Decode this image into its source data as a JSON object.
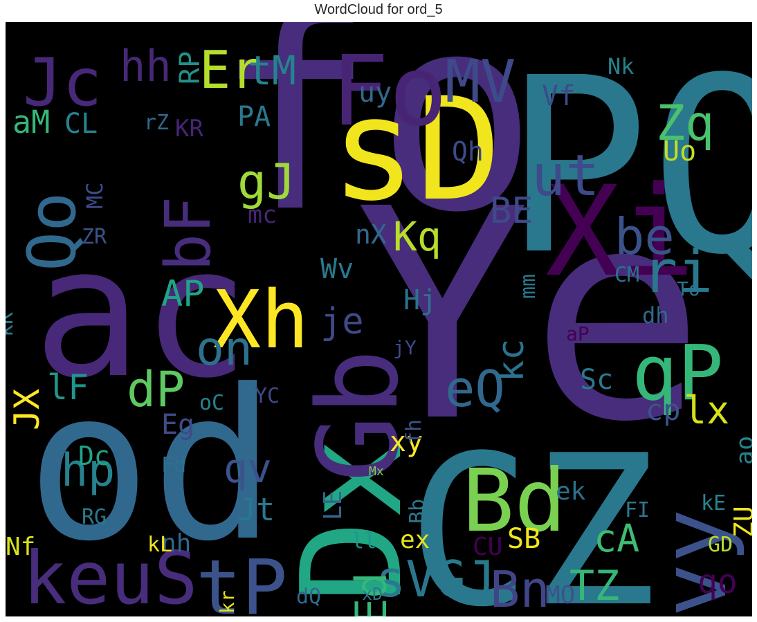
{
  "chart_data": {
    "type": "wordcloud",
    "title": "WordCloud for ord_5",
    "background_color": "#000000",
    "colormap": "viridis",
    "words": [
      {
        "text": "fo",
        "weight": 1.0,
        "color": "#472d7b"
      },
      {
        "text": "od",
        "weight": 0.98,
        "color": "#31688e"
      },
      {
        "text": "Ye",
        "weight": 0.96,
        "color": "#472d7b"
      },
      {
        "text": "PQ",
        "weight": 0.94,
        "color": "#2a788e"
      },
      {
        "text": "CZ",
        "weight": 0.92,
        "color": "#2a788e"
      },
      {
        "text": "ac",
        "weight": 0.9,
        "color": "#482878"
      },
      {
        "text": "sD",
        "weight": 0.88,
        "color": "#f1e51d"
      },
      {
        "text": "Dx",
        "weight": 0.82,
        "color": "#22a785"
      },
      {
        "text": "Xi",
        "weight": 0.76,
        "color": "#440154"
      },
      {
        "text": "Gb",
        "weight": 0.74,
        "color": "#472d7b"
      },
      {
        "text": "Fo",
        "weight": 0.72,
        "color": "#482475"
      },
      {
        "text": "Bd",
        "weight": 0.7,
        "color": "#7ad151"
      },
      {
        "text": "Xh",
        "weight": 0.68,
        "color": "#fde725"
      },
      {
        "text": "vy",
        "weight": 0.67,
        "color": "#3b528b"
      },
      {
        "text": "qP",
        "weight": 0.66,
        "color": "#35b779"
      },
      {
        "text": "keuS",
        "weight": 0.65,
        "color": "#472d7b"
      },
      {
        "text": "tP",
        "weight": 0.64,
        "color": "#3b528b"
      },
      {
        "text": "Jc",
        "weight": 0.63,
        "color": "#482878"
      },
      {
        "text": "bF",
        "weight": 0.62,
        "color": "#472d7b"
      },
      {
        "text": "Qo",
        "weight": 0.61,
        "color": "#31688e"
      },
      {
        "text": "Er",
        "weight": 0.6,
        "color": "#b5de2b"
      },
      {
        "text": "MV",
        "weight": 0.59,
        "color": "#3e4a89"
      },
      {
        "text": "ri",
        "weight": 0.58,
        "color": "#2a788e"
      },
      {
        "text": "be",
        "weight": 0.56,
        "color": "#3b528b"
      },
      {
        "text": "ut",
        "weight": 0.56,
        "color": "#3e4a89"
      },
      {
        "text": "eQ",
        "weight": 0.55,
        "color": "#31688e"
      },
      {
        "text": "gJ",
        "weight": 0.54,
        "color": "#a0da39"
      },
      {
        "text": "Zq",
        "weight": 0.54,
        "color": "#4ac16d"
      },
      {
        "text": "on",
        "weight": 0.53,
        "color": "#2c728e"
      },
      {
        "text": "dP",
        "weight": 0.53,
        "color": "#5ec962"
      },
      {
        "text": "sVGJ",
        "weight": 0.52,
        "color": "#2a788e"
      },
      {
        "text": "Bn",
        "weight": 0.52,
        "color": "#414487"
      },
      {
        "text": "hh",
        "weight": 0.51,
        "color": "#482878"
      },
      {
        "text": "tM",
        "weight": 0.51,
        "color": "#26828e"
      },
      {
        "text": "Ed",
        "weight": 0.5,
        "color": "#35b779"
      },
      {
        "text": "hp",
        "weight": 0.5,
        "color": "#26828e"
      },
      {
        "text": "Kq",
        "weight": 0.49,
        "color": "#b8de29"
      },
      {
        "text": "BE",
        "weight": 0.49,
        "color": "#3e4a89"
      },
      {
        "text": "qv",
        "weight": 0.48,
        "color": "#3b528b"
      },
      {
        "text": "cA",
        "weight": 0.48,
        "color": "#3fbc73"
      },
      {
        "text": "lx",
        "weight": 0.47,
        "color": "#d8e219"
      },
      {
        "text": "TZ",
        "weight": 0.47,
        "color": "#35b779"
      },
      {
        "text": "qo",
        "weight": 0.46,
        "color": "#440154"
      },
      {
        "text": "je",
        "weight": 0.46,
        "color": "#3e4a89"
      },
      {
        "text": "AP",
        "weight": 0.45,
        "color": "#20a386"
      },
      {
        "text": "kc",
        "weight": 0.45,
        "color": "#2c728e"
      },
      {
        "text": "aM",
        "weight": 0.44,
        "color": "#35b779"
      },
      {
        "text": "uy",
        "weight": 0.44,
        "color": "#31688e"
      },
      {
        "text": "Vf",
        "weight": 0.43,
        "color": "#3e4a89"
      },
      {
        "text": "Uo",
        "weight": 0.43,
        "color": "#c2df23"
      },
      {
        "text": "Jt",
        "weight": 0.42,
        "color": "#2a788e"
      },
      {
        "text": "JX",
        "weight": 0.42,
        "color": "#fde725"
      },
      {
        "text": "lF",
        "weight": 0.41,
        "color": "#1f968b"
      },
      {
        "text": "xy",
        "weight": 0.4,
        "color": "#fde725"
      },
      {
        "text": "Sc",
        "weight": 0.4,
        "color": "#2a788e"
      },
      {
        "text": "cp",
        "weight": 0.39,
        "color": "#3b528b"
      },
      {
        "text": "Hj",
        "weight": 0.39,
        "color": "#2c728e"
      },
      {
        "text": "Wv",
        "weight": 0.39,
        "color": "#2a788e"
      },
      {
        "text": "CL",
        "weight": 0.38,
        "color": "#26828e"
      },
      {
        "text": "Dc",
        "weight": 0.37,
        "color": "#20a386"
      },
      {
        "text": "Eg",
        "weight": 0.37,
        "color": "#3e4a89"
      },
      {
        "text": "PA",
        "weight": 0.36,
        "color": "#2a788e"
      },
      {
        "text": "Nk",
        "weight": 0.36,
        "color": "#26828e"
      },
      {
        "text": "CM",
        "weight": 0.35,
        "color": "#2c728e"
      },
      {
        "text": "nX",
        "weight": 0.35,
        "color": "#31688e"
      },
      {
        "text": "ek",
        "weight": 0.35,
        "color": "#2c728e"
      },
      {
        "text": "ex",
        "weight": 0.34,
        "color": "#e5e419"
      },
      {
        "text": "MO",
        "weight": 0.34,
        "color": "#3b528b"
      },
      {
        "text": "SB",
        "weight": 0.34,
        "color": "#f1e51d"
      },
      {
        "text": "CU",
        "weight": 0.34,
        "color": "#440154"
      },
      {
        "text": "ZU",
        "weight": 0.33,
        "color": "#f1e51d"
      },
      {
        "text": "ao",
        "weight": 0.33,
        "color": "#26828e"
      },
      {
        "text": "Qh",
        "weight": 0.33,
        "color": "#3e4a89"
      },
      {
        "text": "mm",
        "weight": 0.33,
        "color": "#2a788e"
      },
      {
        "text": "LE",
        "weight": 0.33,
        "color": "#31688e"
      },
      {
        "text": "nh",
        "weight": 0.33,
        "color": "#31688e"
      },
      {
        "text": "Fd",
        "weight": 0.33,
        "color": "#2c728e"
      },
      {
        "text": "mc",
        "weight": 0.33,
        "color": "#482475"
      },
      {
        "text": "dQ",
        "weight": 0.32,
        "color": "#31688e"
      },
      {
        "text": "Nf",
        "weight": 0.32,
        "color": "#d8e219"
      },
      {
        "text": "RG",
        "weight": 0.32,
        "color": "#2a788e"
      },
      {
        "text": "MC",
        "weight": 0.32,
        "color": "#3e4a89"
      },
      {
        "text": "FI",
        "weight": 0.32,
        "color": "#2a788e"
      },
      {
        "text": "kE",
        "weight": 0.32,
        "color": "#26828e"
      },
      {
        "text": "RP",
        "weight": 0.31,
        "color": "#21918c"
      },
      {
        "text": "ZR",
        "weight": 0.31,
        "color": "#3b528b"
      },
      {
        "text": "KR",
        "weight": 0.31,
        "color": "#482475"
      },
      {
        "text": "rZ",
        "weight": 0.31,
        "color": "#31688e"
      },
      {
        "text": "GD",
        "weight": 0.3,
        "color": "#b8de29"
      },
      {
        "text": "kL",
        "weight": 0.3,
        "color": "#f1e51d"
      },
      {
        "text": "oC",
        "weight": 0.3,
        "color": "#26828e"
      },
      {
        "text": "YC",
        "weight": 0.3,
        "color": "#3e4a89"
      },
      {
        "text": "kK",
        "weight": 0.3,
        "color": "#2a788e"
      },
      {
        "text": "fh",
        "weight": 0.3,
        "color": "#3b528b"
      },
      {
        "text": "To",
        "weight": 0.3,
        "color": "#2c728e"
      },
      {
        "text": "dh",
        "weight": 0.3,
        "color": "#31688e"
      },
      {
        "text": "ll",
        "weight": 0.29,
        "color": "#1f968b"
      },
      {
        "text": "jY",
        "weight": 0.29,
        "color": "#3e4a89"
      },
      {
        "text": "aP",
        "weight": 0.29,
        "color": "#440154"
      },
      {
        "text": "kr",
        "weight": 0.29,
        "color": "#e5e419"
      },
      {
        "text": "xD",
        "weight": 0.29,
        "color": "#2a788e"
      },
      {
        "text": "Mx",
        "weight": 0.29,
        "color": "#7ad151"
      },
      {
        "text": "Bb",
        "weight": 0.29,
        "color": "#2a788e"
      }
    ]
  }
}
